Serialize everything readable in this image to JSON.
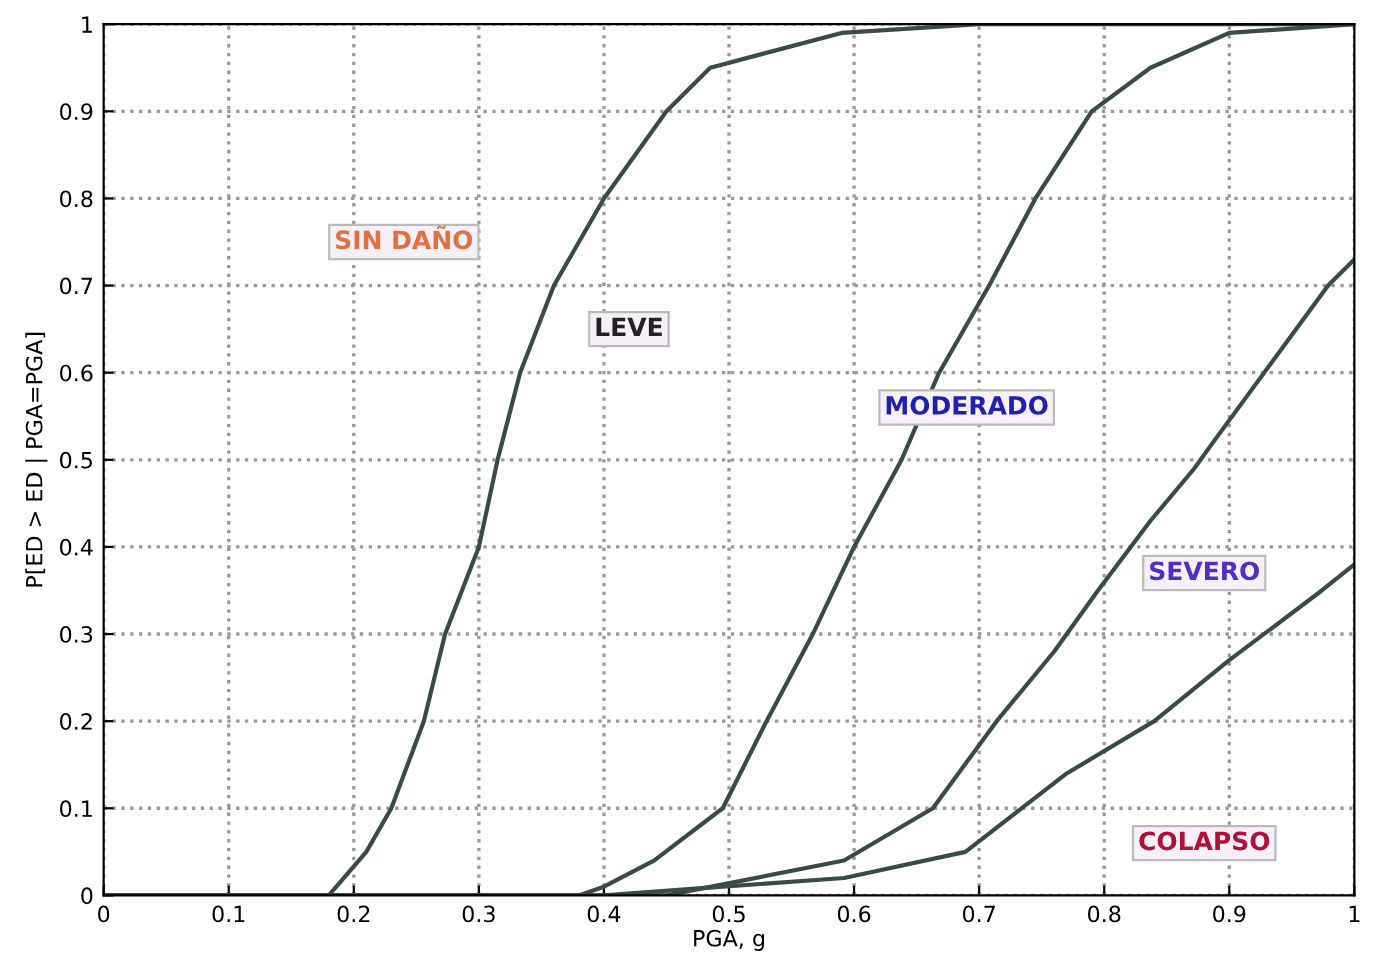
{
  "chart_data": {
    "type": "line",
    "xlabel": "PGA, g",
    "ylabel": "P[ED > ED | PGA=PGA]",
    "xlim": [
      0,
      1
    ],
    "ylim": [
      0,
      1
    ],
    "xticks": [
      0,
      0.1,
      0.2,
      0.3,
      0.4,
      0.5,
      0.6,
      0.7,
      0.8,
      0.9,
      1
    ],
    "yticks": [
      0,
      0.1,
      0.2,
      0.3,
      0.4,
      0.5,
      0.6,
      0.7,
      0.8,
      0.9,
      1
    ],
    "grid": true,
    "line_style": "solid",
    "series": [
      {
        "color": "#3a4a48",
        "x": [
          0,
          0.18,
          0.21,
          0.23,
          0.256,
          0.273,
          0.3,
          0.315,
          0.333,
          0.36,
          0.4,
          0.45,
          0.485,
          0.59,
          0.7,
          1
        ],
        "values": [
          0,
          0,
          0.05,
          0.1,
          0.2,
          0.3,
          0.4,
          0.5,
          0.6,
          0.7,
          0.8,
          0.9,
          0.95,
          0.99,
          1,
          1
        ]
      },
      {
        "color": "#3a4a48",
        "x": [
          0,
          0.38,
          0.4,
          0.44,
          0.495,
          0.53,
          0.567,
          0.6,
          0.638,
          0.668,
          0.708,
          0.745,
          0.79,
          0.837,
          0.9,
          1
        ],
        "values": [
          0,
          0,
          0.01,
          0.04,
          0.1,
          0.2,
          0.3,
          0.4,
          0.5,
          0.6,
          0.7,
          0.8,
          0.9,
          0.95,
          0.99,
          1
        ]
      },
      {
        "color": "#3a4a48",
        "x": [
          0,
          0.45,
          0.592,
          0.663,
          0.714,
          0.76,
          0.795,
          0.837,
          0.872,
          0.887,
          0.933,
          0.979,
          1
        ],
        "values": [
          0,
          0,
          0.04,
          0.1,
          0.2,
          0.28,
          0.35,
          0.43,
          0.49,
          0.52,
          0.61,
          0.7,
          0.73
        ]
      },
      {
        "color": "#3a4a48",
        "x": [
          0,
          0.4,
          0.495,
          0.592,
          0.689,
          0.77,
          0.84,
          0.9,
          0.974,
          1
        ],
        "values": [
          0,
          0,
          0.01,
          0.02,
          0.05,
          0.14,
          0.2,
          0.27,
          0.35,
          0.38
        ]
      }
    ],
    "annotations": [
      "SIN DAÑO",
      "LEVE",
      "MODERADO",
      "SEVERO",
      "COLAPSO"
    ]
  }
}
